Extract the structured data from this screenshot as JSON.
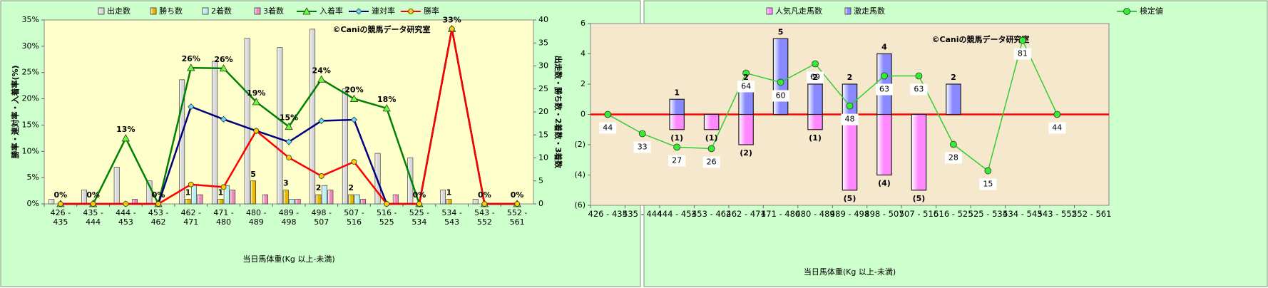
{
  "chart_data": [
    {
      "type": "combo",
      "barmode": "group",
      "categories": [
        "426 - 435",
        "435 - 444",
        "444 - 453",
        "453 - 462",
        "462 - 471",
        "471 - 480",
        "480 - 489",
        "489 - 498",
        "498 - 507",
        "507 - 516",
        "516 - 525",
        "525 - 534",
        "534 - 543",
        "543 - 552",
        "552 - 561"
      ],
      "x_label": "当日馬体重(Kg 以上-未満)",
      "y_label": "勝率・連対率・入着率(%)",
      "y2_label": "出走数・勝ち数・2着数・3着数",
      "watermark": "©Caniの競馬データ研究室",
      "ylim": [
        0,
        35
      ],
      "yticks": [
        {
          "value": 0,
          "label": "0%"
        },
        {
          "value": 5,
          "label": "5%"
        },
        {
          "value": 10,
          "label": "10%"
        },
        {
          "value": 15,
          "label": "15%"
        },
        {
          "value": 20,
          "label": "20%"
        },
        {
          "value": 25,
          "label": "25%"
        },
        {
          "value": 30,
          "label": "30%"
        },
        {
          "value": 35,
          "label": "35%"
        }
      ],
      "y2lim": [
        0,
        40
      ],
      "y2ticks": [
        0,
        5,
        10,
        15,
        20,
        25,
        30,
        35,
        40
      ],
      "series": [
        {
          "name": "出走数",
          "kind": "bar",
          "axis": "y2",
          "color": "#d8d8d8",
          "values": [
            1,
            3,
            8,
            5,
            27,
            31,
            36,
            34,
            38,
            25,
            11,
            10,
            3,
            1,
            0
          ]
        },
        {
          "name": "勝ち数",
          "kind": "bar",
          "axis": "y2",
          "color": "#e6b800",
          "values": [
            0,
            0,
            0,
            0,
            1,
            1,
            5,
            3,
            2,
            2,
            0,
            0,
            1,
            0,
            0
          ],
          "value_labels": [
            null,
            null,
            null,
            null,
            "1",
            "1",
            "5",
            "3",
            "2",
            "2",
            null,
            null,
            "1",
            null,
            null
          ]
        },
        {
          "name": "2着数",
          "kind": "bar",
          "axis": "y2",
          "color": "#b8f0f0",
          "values": [
            0,
            0,
            0,
            0,
            4,
            4,
            0,
            1,
            4,
            2,
            0,
            0,
            0,
            0,
            0
          ]
        },
        {
          "name": "3着数",
          "kind": "bar",
          "axis": "y2",
          "color": "#ee88bb",
          "values": [
            0,
            0,
            1,
            0,
            2,
            3,
            2,
            1,
            3,
            1,
            2,
            0,
            0,
            0,
            0
          ]
        },
        {
          "name": "入着率",
          "kind": "line",
          "marker": "triangle",
          "color": "#008000",
          "values": [
            0,
            0,
            12.5,
            0,
            25.9,
            25.8,
            19.4,
            14.7,
            23.7,
            20,
            18.2,
            0,
            33.3,
            0,
            0
          ],
          "value_labels": [
            "0%",
            "0%",
            "13%",
            "0%",
            "26%",
            "26%",
            "19%",
            "15%",
            "24%",
            "20%",
            "18%",
            "0%",
            "33%",
            "0%",
            "0%"
          ]
        },
        {
          "name": "連対率",
          "kind": "line",
          "marker": "diamond",
          "color": "#000080",
          "values": [
            0,
            0,
            0,
            0,
            18.5,
            16.1,
            13.9,
            11.8,
            15.8,
            16,
            0,
            0,
            33.3,
            0,
            0
          ]
        },
        {
          "name": "勝率",
          "kind": "line",
          "marker": "circle",
          "color": "#ff0000",
          "values": [
            0,
            0,
            0,
            0,
            3.7,
            3.2,
            13.9,
            8.8,
            5.3,
            8,
            0,
            0,
            33.3,
            0,
            0
          ]
        }
      ]
    },
    {
      "type": "combo",
      "barmode": "overlay",
      "categories": [
        "426 - 435",
        "435 - 444",
        "444 - 453",
        "453 - 462",
        "462 - 471",
        "471 - 480",
        "480 - 489",
        "489 - 498",
        "498 - 507",
        "507 - 516",
        "516 - 525",
        "525 - 534",
        "534 - 543",
        "543 - 552",
        "552 - 561"
      ],
      "x_label": "当日馬体重(Kg 以上-未満)",
      "watermark": "©Caniの競馬データ研究室",
      "ylim": [
        -6,
        6
      ],
      "yticks": [
        {
          "value": -6,
          "label": "(6)"
        },
        {
          "value": -4,
          "label": "(4)"
        },
        {
          "value": -2,
          "label": "(2)"
        },
        0,
        2,
        4,
        6
      ],
      "negative_tick_color": "#ff0000",
      "zero_line_color": "#ff0000",
      "series": [
        {
          "name": "人気凡走馬数",
          "kind": "bar",
          "color": "#ff88ff",
          "label_color": "#ff0000",
          "values": [
            0,
            0,
            -1,
            -1,
            -2,
            0,
            -1,
            -5,
            -4,
            -5,
            0,
            0,
            0,
            0,
            0
          ],
          "value_labels": [
            null,
            null,
            "(1)",
            "(1)",
            "(2)",
            null,
            "(1)",
            "(5)",
            "(4)",
            "(5)",
            null,
            null,
            null,
            null,
            null
          ]
        },
        {
          "name": "激走馬数",
          "kind": "bar",
          "color": "#8888ff",
          "label_color": "#000000",
          "values": [
            0,
            0,
            1,
            0,
            2,
            5,
            2,
            2,
            4,
            0,
            2,
            0,
            0,
            0,
            0
          ],
          "value_labels": [
            null,
            null,
            "1",
            null,
            "2",
            "5",
            "2",
            "2",
            "4",
            null,
            "2",
            null,
            null,
            null,
            null
          ]
        },
        {
          "name": "検定値",
          "kind": "line",
          "marker": "circle",
          "color": "#33cc33",
          "values": [
            0,
            -1.27,
            -2.16,
            -2.26,
            2.73,
            2.12,
            3.34,
            0.56,
            2.54,
            2.54,
            -1.98,
            -3.72,
            4.89,
            0,
            null
          ],
          "point_labels": [
            "44",
            "33",
            "27",
            "26",
            "64",
            "60",
            "69",
            "48",
            "63",
            "63",
            "28",
            "15",
            "81",
            "44",
            null
          ]
        }
      ]
    }
  ]
}
